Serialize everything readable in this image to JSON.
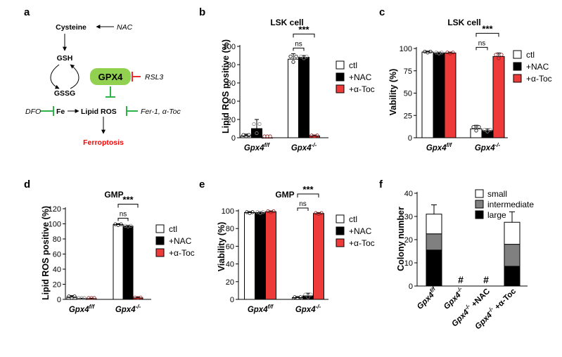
{
  "panels": {
    "a": {
      "label": "a",
      "nodes": {
        "cysteine": "Cysteine",
        "nac": "NAC",
        "gsh": "GSH",
        "gpx4": "GPX4",
        "rsl3": "RSL3",
        "gssg": "GSSG",
        "dfo": "DFO",
        "fe": "Fe",
        "lipid_ros": "Lipid ROS",
        "fer": "Fer-1, α-Toc",
        "ferroptosis": "Ferroptosis"
      },
      "colors": {
        "gpx4_fill": "#92d050",
        "inhibitor_green": "#2db34a",
        "inhibitor_red": "#e8302a",
        "ferroptosis_text": "#ff0000"
      }
    },
    "legend_labels": [
      "ctl",
      "+NAC",
      "+α-Toc"
    ],
    "legend_colors": [
      "#ffffff",
      "#000000",
      "#ef3a3a"
    ],
    "group_labels": {
      "flox": "Gpx4",
      "flox_sup": "f/f",
      "ko": "Gpx4",
      "ko_sup": "-/-"
    },
    "b": {
      "label": "b",
      "title": "LSK cell",
      "ylabel": "Lipid ROS positive (%)"
    },
    "c": {
      "label": "c",
      "title": "LSK cell",
      "ylabel": "Vability (%)"
    },
    "d": {
      "label": "d",
      "title": "GMP",
      "ylabel": "Lipid ROS positive (%)"
    },
    "e": {
      "label": "e",
      "title": "GMP",
      "ylabel": "Viability (%)"
    },
    "f": {
      "label": "f",
      "ylabel": "Colony number"
    }
  },
  "chart_data": [
    {
      "panel": "b",
      "type": "bar",
      "title": "LSK cell",
      "ylabel": "Lipid ROS positive (%)",
      "ylim": [
        0,
        100
      ],
      "yticks": [
        0,
        20,
        40,
        60,
        80,
        100
      ],
      "categories": [
        "Gpx4 f/f",
        "Gpx4 -/-"
      ],
      "series": [
        {
          "name": "ctl",
          "values": [
            2,
            86
          ],
          "errors": [
            2,
            6
          ]
        },
        {
          "name": "+NAC",
          "values": [
            10,
            88
          ],
          "errors": [
            10,
            2
          ]
        },
        {
          "name": "+α-Toc",
          "values": [
            0,
            2
          ],
          "errors": [
            0,
            1
          ]
        }
      ],
      "annotations": [
        {
          "text": "ns",
          "between": [
            "ctl",
            "+NAC"
          ],
          "group": 1
        },
        {
          "text": "***",
          "between": [
            "ctl",
            "+α-Toc"
          ],
          "group": 1
        }
      ]
    },
    {
      "panel": "c",
      "type": "bar",
      "title": "LSK cell",
      "ylabel": "Vability (%)",
      "ylim": [
        0,
        100
      ],
      "yticks": [
        0,
        25,
        50,
        75,
        100
      ],
      "categories": [
        "Gpx4 f/f",
        "Gpx4 -/-"
      ],
      "series": [
        {
          "name": "ctl",
          "values": [
            96,
            10
          ],
          "errors": [
            1,
            4
          ]
        },
        {
          "name": "+NAC",
          "values": [
            95,
            8
          ],
          "errors": [
            1,
            2
          ]
        },
        {
          "name": "+α-Toc",
          "values": [
            95,
            91
          ],
          "errors": [
            1,
            4
          ]
        }
      ],
      "annotations": [
        {
          "text": "ns",
          "between": [
            "ctl",
            "+NAC"
          ],
          "group": 1
        },
        {
          "text": "***",
          "between": [
            "ctl",
            "+α-Toc"
          ],
          "group": 1
        }
      ]
    },
    {
      "panel": "d",
      "type": "bar",
      "title": "GMP",
      "ylabel": "Lipid ROS positive (%)",
      "ylim": [
        0,
        120
      ],
      "yticks": [
        0,
        20,
        40,
        60,
        80,
        100,
        120
      ],
      "categories": [
        "Gpx4 f/f",
        "Gpx4 -/-"
      ],
      "series": [
        {
          "name": "ctl",
          "values": [
            3,
            99
          ],
          "errors": [
            2,
            1
          ]
        },
        {
          "name": "+NAC",
          "values": [
            1,
            97
          ],
          "errors": [
            0.5,
            1
          ]
        },
        {
          "name": "+α-Toc",
          "values": [
            1,
            2
          ],
          "errors": [
            0.5,
            1
          ]
        }
      ],
      "annotations": [
        {
          "text": "ns",
          "between": [
            "ctl",
            "+NAC"
          ],
          "group": 1
        },
        {
          "text": "***",
          "between": [
            "ctl",
            "+α-Toc"
          ],
          "group": 1
        }
      ]
    },
    {
      "panel": "e",
      "type": "bar",
      "title": "GMP",
      "ylabel": "Viability (%)",
      "ylim": [
        0,
        100
      ],
      "yticks": [
        0,
        20,
        40,
        60,
        80,
        100
      ],
      "categories": [
        "Gpx4 f/f",
        "Gpx4 -/-"
      ],
      "series": [
        {
          "name": "ctl",
          "values": [
            98,
            2
          ],
          "errors": [
            1,
            1
          ]
        },
        {
          "name": "+NAC",
          "values": [
            98,
            4
          ],
          "errors": [
            1,
            3
          ]
        },
        {
          "name": "+α-Toc",
          "values": [
            99,
            97
          ],
          "errors": [
            1,
            1
          ]
        }
      ],
      "annotations": [
        {
          "text": "ns",
          "between": [
            "ctl",
            "+NAC"
          ],
          "group": 1
        },
        {
          "text": "***",
          "between": [
            "ctl",
            "+α-Toc"
          ],
          "group": 1
        }
      ]
    },
    {
      "panel": "f",
      "type": "bar",
      "stacked": true,
      "ylabel": "Colony number",
      "ylim": [
        0,
        40
      ],
      "yticks": [
        0,
        10,
        20,
        30,
        40
      ],
      "categories": [
        {
          "main": "Gpx4",
          "sup": "f/f",
          "suffix": ""
        },
        {
          "main": "Gpx4",
          "sup": "-/-",
          "suffix": ""
        },
        {
          "main": "Gpx4",
          "sup": "-/-",
          "suffix": " +NAC"
        },
        {
          "main": "Gpx4",
          "sup": "-/-",
          "suffix": " +α-Toc"
        }
      ],
      "series": [
        {
          "name": "large",
          "values": [
            15.5,
            0,
            0,
            8.5
          ],
          "errors": [
            3,
            0,
            0,
            3
          ],
          "color": "#000000"
        },
        {
          "name": "intermediate",
          "values": [
            7,
            0,
            0,
            9.5
          ],
          "errors": [
            1.5,
            0,
            0,
            3
          ],
          "color": "#808080"
        },
        {
          "name": "small",
          "values": [
            8.5,
            0,
            0,
            9.5
          ],
          "errors": [
            4,
            0,
            0,
            4.5
          ],
          "color": "#ffffff"
        }
      ],
      "markers": [
        "",
        "#",
        "#",
        ""
      ],
      "legend": [
        "small",
        "intermediate",
        "large"
      ]
    }
  ]
}
